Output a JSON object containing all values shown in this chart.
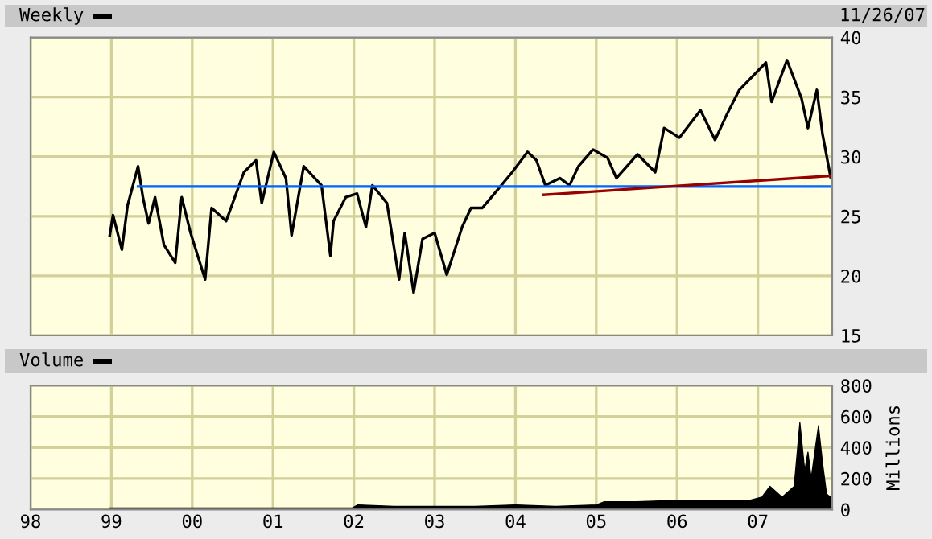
{
  "chart_data": [
    {
      "type": "line",
      "title": "Weekly",
      "annotations": [
        "11/26/07"
      ],
      "xlim": [
        1998,
        2007.92
      ],
      "ylim": [
        15,
        40
      ],
      "yticks": [
        15,
        20,
        25,
        30,
        35,
        40
      ],
      "xticks": [
        {
          "value": 1998,
          "label": null
        },
        {
          "value": 1999,
          "label": null
        },
        {
          "value": 2000,
          "label": null
        },
        {
          "value": 2001,
          "label": null
        },
        {
          "value": 2002,
          "label": null
        },
        {
          "value": 2003,
          "label": null
        },
        {
          "value": 2004,
          "label": null
        },
        {
          "value": 2005,
          "label": null
        },
        {
          "value": 2006,
          "label": null
        },
        {
          "value": 2007,
          "label": null
        }
      ],
      "tick_labels": "y",
      "grid": true,
      "legend": false,
      "series": [
        {
          "color": "#000000",
          "x": [
            1998.98,
            1999.02,
            1999.13,
            1999.2,
            1999.33,
            1999.39,
            1999.46,
            1999.54,
            1999.65,
            1999.79,
            1999.87,
            1999.98,
            2000.16,
            2000.24,
            2000.42,
            2000.64,
            2000.79,
            2000.86,
            2001.01,
            2001.16,
            2001.23,
            2001.38,
            2001.6,
            2001.71,
            2001.75,
            2001.9,
            2002.04,
            2002.15,
            2002.23,
            2002.41,
            2002.56,
            2002.63,
            2002.74,
            2002.85,
            2003.0,
            2003.15,
            2003.34,
            2003.45,
            2003.59,
            2003.74,
            2003.96,
            2004.15,
            2004.26,
            2004.37,
            2004.55,
            2004.67,
            2004.78,
            2004.96,
            2005.14,
            2005.25,
            2005.51,
            2005.73,
            2005.84,
            2006.03,
            2006.29,
            2006.47,
            2006.62,
            2006.77,
            2007.1,
            2007.17,
            2007.36,
            2007.54,
            2007.62,
            2007.73,
            2007.8,
            2007.9
          ],
          "values": [
            23.4,
            25.1,
            22.2,
            25.9,
            29.2,
            26.6,
            24.4,
            26.6,
            22.6,
            21.1,
            26.6,
            23.6,
            19.7,
            25.7,
            24.6,
            28.7,
            29.7,
            26.1,
            30.4,
            28.2,
            23.4,
            29.2,
            27.6,
            21.7,
            24.6,
            26.6,
            26.9,
            24.1,
            27.6,
            26.1,
            19.7,
            23.6,
            18.6,
            23.1,
            23.6,
            20.1,
            24.1,
            25.7,
            25.7,
            26.9,
            28.7,
            30.4,
            29.7,
            27.6,
            28.2,
            27.6,
            29.2,
            30.6,
            29.9,
            28.2,
            30.2,
            28.7,
            32.4,
            31.6,
            33.9,
            31.4,
            33.6,
            35.6,
            37.9,
            34.6,
            38.1,
            34.9,
            32.4,
            35.6,
            31.9,
            28.3
          ]
        },
        {
          "color": "#0066ff",
          "x": [
            1999.33,
            2007.92
          ],
          "values": [
            27.5,
            27.5
          ]
        },
        {
          "color": "#990000",
          "x": [
            2004.35,
            2007.92
          ],
          "values": [
            26.8,
            28.4
          ]
        }
      ]
    },
    {
      "type": "area",
      "title": "Volume",
      "ylabel": "Millions",
      "xlim": [
        1998,
        2007.92
      ],
      "ylim": [
        0,
        800
      ],
      "yticks": [
        0,
        200,
        400,
        600,
        800
      ],
      "xticks": [
        {
          "value": 1998,
          "label": "98"
        },
        {
          "value": 1999,
          "label": "99"
        },
        {
          "value": 2000,
          "label": "00"
        },
        {
          "value": 2001,
          "label": "01"
        },
        {
          "value": 2002,
          "label": "02"
        },
        {
          "value": 2003,
          "label": "03"
        },
        {
          "value": 2004,
          "label": "04"
        },
        {
          "value": 2005,
          "label": "05"
        },
        {
          "value": 2006,
          "label": "06"
        },
        {
          "value": 2007,
          "label": "07"
        }
      ],
      "grid": true,
      "legend": false,
      "series": [
        {
          "color": "#000000",
          "x": [
            1998.98,
            1999.5,
            2000.5,
            2001.5,
            2001.98,
            2002.05,
            2002.5,
            2003.0,
            2003.5,
            2004.0,
            2004.5,
            2005.0,
            2005.1,
            2005.5,
            2006.0,
            2006.5,
            2006.9,
            2007.05,
            2007.15,
            2007.3,
            2007.45,
            2007.52,
            2007.58,
            2007.62,
            2007.66,
            2007.7,
            2007.75,
            2007.8,
            2007.85,
            2007.9
          ],
          "values": [
            10,
            10,
            10,
            10,
            10,
            30,
            20,
            20,
            20,
            30,
            20,
            30,
            50,
            50,
            60,
            60,
            60,
            80,
            150,
            80,
            150,
            560,
            250,
            370,
            200,
            350,
            540,
            300,
            100,
            80
          ]
        }
      ]
    }
  ]
}
